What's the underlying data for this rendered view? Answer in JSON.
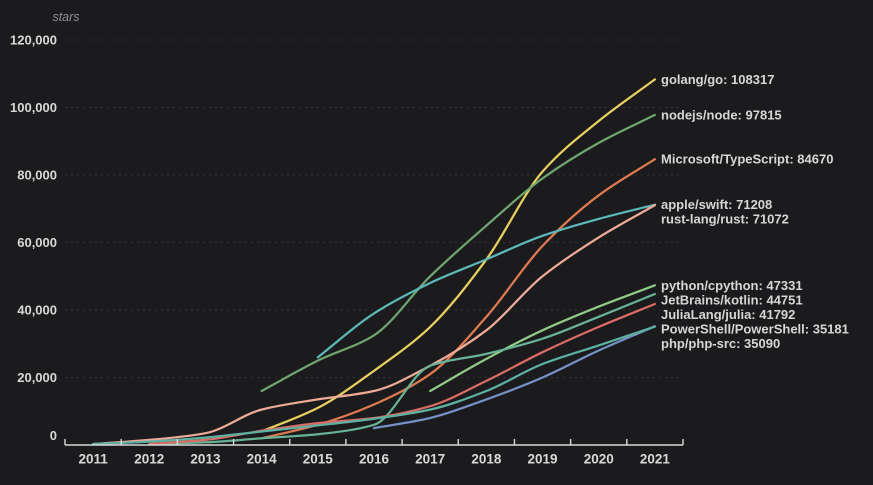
{
  "page": {
    "background": "#1b1b1d",
    "text_color": "#d9d9d9",
    "muted_text_color": "#8f9092",
    "grid_color": "#474747",
    "axis_color": "#d9d9d9"
  },
  "chart_data": {
    "type": "line",
    "title": "",
    "ylabel": "stars",
    "xlabel": "",
    "x_tick_labels": [
      "2011",
      "2012",
      "2013",
      "2014",
      "2015",
      "2016",
      "2017",
      "2018",
      "2019",
      "2020",
      "2021"
    ],
    "y_tick_values": [
      0,
      20000,
      40000,
      60000,
      80000,
      100000,
      120000
    ],
    "y_tick_labels": [
      "0",
      "20,000",
      "40,000",
      "60,000",
      "80,000",
      "100,000",
      "120,000"
    ],
    "ylim": [
      0,
      120000
    ],
    "xlim": [
      2010.5,
      2021.5
    ],
    "grid": "horizontal-dashed",
    "legend_position": "labels-at-line-ends-right",
    "series": [
      {
        "name": "golang/go",
        "final_value": 108317,
        "label": "golang/go: 108317",
        "color": "#e7cf60",
        "points": [
          [
            2014,
            4000
          ],
          [
            2015,
            11000
          ],
          [
            2016,
            22000
          ],
          [
            2017,
            35000
          ],
          [
            2018,
            55000
          ],
          [
            2019,
            81000
          ],
          [
            2020,
            96000
          ],
          [
            2021,
            108317
          ]
        ]
      },
      {
        "name": "nodejs/node",
        "final_value": 97815,
        "label": "nodejs/node: 97815",
        "color": "#70a570",
        "points": [
          [
            2014,
            16000
          ],
          [
            2015,
            25000
          ],
          [
            2016,
            32500
          ],
          [
            2017,
            50000
          ],
          [
            2018,
            65000
          ],
          [
            2019,
            79000
          ],
          [
            2020,
            89500
          ],
          [
            2021,
            97815
          ]
        ]
      },
      {
        "name": "Microsoft/TypeScript",
        "final_value": 84670,
        "label": "Microsoft/TypeScript: 84670",
        "color": "#df7a50",
        "points": [
          [
            2014,
            2000
          ],
          [
            2015,
            6000
          ],
          [
            2016,
            12000
          ],
          [
            2017,
            21000
          ],
          [
            2018,
            38000
          ],
          [
            2019,
            59000
          ],
          [
            2020,
            74000
          ],
          [
            2021,
            84670
          ]
        ]
      },
      {
        "name": "apple/swift",
        "final_value": 71208,
        "label": "apple/swift: 71208",
        "color": "#5cb8b8",
        "points": [
          [
            2015,
            26000
          ],
          [
            2016,
            39000
          ],
          [
            2017,
            48000
          ],
          [
            2018,
            55000
          ],
          [
            2019,
            62000
          ],
          [
            2020,
            67000
          ],
          [
            2021,
            71208
          ]
        ]
      },
      {
        "name": "rust-lang/rust",
        "final_value": 71072,
        "label": "rust-lang/rust: 71072",
        "color": "#edaa97",
        "points": [
          [
            2011,
            300
          ],
          [
            2012,
            1500
          ],
          [
            2013,
            3500
          ],
          [
            2014,
            10500
          ],
          [
            2015,
            13500
          ],
          [
            2016,
            16000
          ],
          [
            2017,
            23500
          ],
          [
            2018,
            34000
          ],
          [
            2019,
            50000
          ],
          [
            2020,
            61500
          ],
          [
            2021,
            71072
          ]
        ]
      },
      {
        "name": "python/cpython",
        "final_value": 47331,
        "label": "python/cpython: 47331",
        "color": "#8fcb85",
        "points": [
          [
            2017,
            16000
          ],
          [
            2018,
            25500
          ],
          [
            2019,
            34000
          ],
          [
            2020,
            41000
          ],
          [
            2021,
            47331
          ]
        ]
      },
      {
        "name": "JetBrains/kotlin",
        "final_value": 44751,
        "label": "JetBrains/kotlin: 44751",
        "color": "#68b295",
        "points": [
          [
            2012,
            300
          ],
          [
            2013,
            800
          ],
          [
            2014,
            2000
          ],
          [
            2015,
            3200
          ],
          [
            2016,
            6000
          ],
          [
            2017,
            23500
          ],
          [
            2018,
            27000
          ],
          [
            2019,
            31500
          ],
          [
            2020,
            38000
          ],
          [
            2021,
            44751
          ]
        ]
      },
      {
        "name": "JuliaLang/julia",
        "final_value": 41792,
        "label": "JuliaLang/julia: 41792",
        "color": "#da6b65",
        "points": [
          [
            2012,
            300
          ],
          [
            2013,
            1500
          ],
          [
            2014,
            4200
          ],
          [
            2015,
            6500
          ],
          [
            2016,
            8000
          ],
          [
            2017,
            11500
          ],
          [
            2018,
            19000
          ],
          [
            2019,
            27500
          ],
          [
            2020,
            35000
          ],
          [
            2021,
            41792
          ]
        ]
      },
      {
        "name": "PowerShell/PowerShell",
        "final_value": 35181,
        "label": "PowerShell/PowerShell: 35181",
        "color": "#7591c5",
        "points": [
          [
            2016,
            5000
          ],
          [
            2017,
            8000
          ],
          [
            2018,
            13500
          ],
          [
            2019,
            20000
          ],
          [
            2020,
            28000
          ],
          [
            2021,
            35181
          ]
        ]
      },
      {
        "name": "php/php-src",
        "final_value": 35090,
        "label": "php/php-src: 35090",
        "color": "#5eb0a2",
        "points": [
          [
            2011,
            300
          ],
          [
            2012,
            1000
          ],
          [
            2013,
            2200
          ],
          [
            2014,
            4000
          ],
          [
            2015,
            5800
          ],
          [
            2016,
            7800
          ],
          [
            2017,
            10500
          ],
          [
            2018,
            16000
          ],
          [
            2019,
            24000
          ],
          [
            2020,
            29500
          ],
          [
            2021,
            35090
          ]
        ]
      }
    ]
  }
}
